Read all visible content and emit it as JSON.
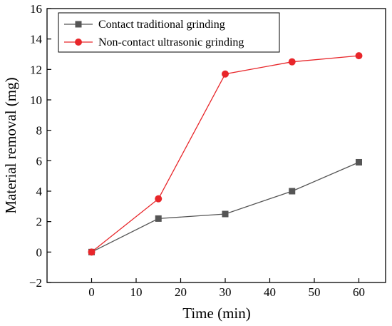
{
  "chart_data": {
    "type": "line",
    "xlabel": "Time (min)",
    "ylabel": "Material removal (mg)",
    "xlim": [
      -10,
      66
    ],
    "ylim": [
      -2,
      16
    ],
    "xticks": [
      0,
      10,
      20,
      30,
      40,
      50,
      60
    ],
    "yticks": [
      -2,
      0,
      2,
      4,
      6,
      8,
      10,
      12,
      14,
      16
    ],
    "grid": false,
    "legend_position": "top-left",
    "series": [
      {
        "name": "Contact traditional grinding",
        "marker": "square",
        "color": "#555555",
        "x": [
          0,
          15,
          30,
          45,
          60
        ],
        "y": [
          0,
          2.2,
          2.5,
          4.0,
          5.9
        ]
      },
      {
        "name": "Non-contact ultrasonic grinding",
        "marker": "circle",
        "color": "#e8262a",
        "x": [
          0,
          15,
          30,
          45,
          60
        ],
        "y": [
          0,
          3.5,
          11.7,
          12.5,
          12.9
        ]
      }
    ]
  }
}
